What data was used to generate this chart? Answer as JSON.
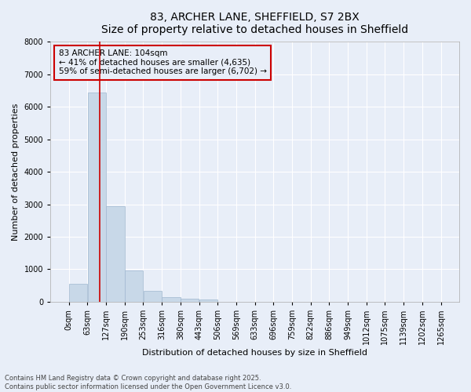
{
  "title_line1": "83, ARCHER LANE, SHEFFIELD, S7 2BX",
  "title_line2": "Size of property relative to detached houses in Sheffield",
  "xlabel": "Distribution of detached houses by size in Sheffield",
  "ylabel": "Number of detached properties",
  "bar_color": "#c8d8e8",
  "bar_edge_color": "#a0b8d0",
  "background_color": "#e8eef8",
  "grid_color": "#ffffff",
  "vline_color": "#cc0000",
  "annotation_box_color": "#cc0000",
  "bin_labels": [
    "0sqm",
    "63sqm",
    "127sqm",
    "190sqm",
    "253sqm",
    "316sqm",
    "380sqm",
    "443sqm",
    "506sqm",
    "569sqm",
    "633sqm",
    "696sqm",
    "759sqm",
    "822sqm",
    "886sqm",
    "949sqm",
    "1012sqm",
    "1075sqm",
    "1139sqm",
    "1202sqm",
    "1265sqm"
  ],
  "bar_values": [
    550,
    6450,
    2950,
    960,
    330,
    150,
    100,
    70,
    0,
    0,
    0,
    0,
    0,
    0,
    0,
    0,
    0,
    0,
    0,
    0
  ],
  "num_bins": 20,
  "bin_width": 63,
  "property_size": 104,
  "property_label": "83 ARCHER LANE: 104sqm",
  "pct_smaller": "41% of detached houses are smaller (4,635)",
  "pct_larger": "59% of semi-detached houses are larger (6,702)",
  "vline_x": 104,
  "ylim": [
    0,
    8000
  ],
  "yticks": [
    0,
    1000,
    2000,
    3000,
    4000,
    5000,
    6000,
    7000,
    8000
  ],
  "footnote_line1": "Contains HM Land Registry data © Crown copyright and database right 2025.",
  "footnote_line2": "Contains public sector information licensed under the Open Government Licence v3.0.",
  "title_fontsize": 10,
  "label_fontsize": 8,
  "tick_fontsize": 7,
  "annot_fontsize": 7.5
}
